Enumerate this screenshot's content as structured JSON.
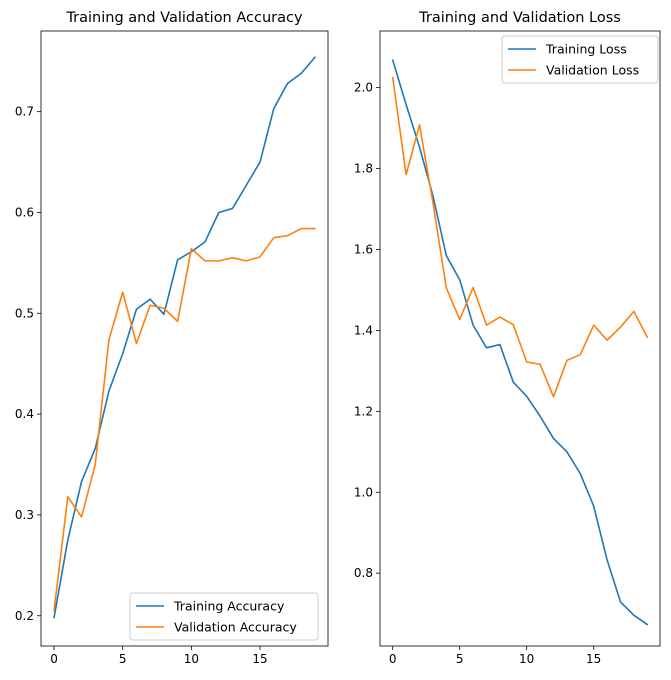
{
  "chart_data": [
    {
      "type": "line",
      "title": "Training and Validation Accuracy",
      "xlabel": "",
      "ylabel": "",
      "xlim": [
        -0.95,
        19.95
      ],
      "ylim": [
        0.17,
        0.78
      ],
      "xticks": [
        0,
        5,
        10,
        15
      ],
      "yticks": [
        0.2,
        0.3,
        0.4,
        0.5,
        0.6,
        0.7
      ],
      "ytick_labels": [
        "0.2",
        "0.3",
        "0.4",
        "0.5",
        "0.6",
        "0.7"
      ],
      "grid": false,
      "legend_position": "bottom-right",
      "x": [
        0,
        1,
        2,
        3,
        4,
        5,
        6,
        7,
        8,
        9,
        10,
        11,
        12,
        13,
        14,
        15,
        16,
        17,
        18,
        19
      ],
      "series": [
        {
          "name": "Training Accuracy",
          "color": "#1f77b4",
          "values": [
            0.198,
            0.275,
            0.333,
            0.366,
            0.423,
            0.46,
            0.504,
            0.514,
            0.499,
            0.553,
            0.561,
            0.571,
            0.6,
            0.604,
            0.627,
            0.65,
            0.703,
            0.728,
            0.738,
            0.754
          ]
        },
        {
          "name": "Validation Accuracy",
          "color": "#ff7f0e",
          "values": [
            0.205,
            0.318,
            0.298,
            0.35,
            0.474,
            0.521,
            0.47,
            0.508,
            0.505,
            0.492,
            0.564,
            0.552,
            0.552,
            0.555,
            0.552,
            0.556,
            0.575,
            0.577,
            0.584,
            0.584
          ]
        }
      ]
    },
    {
      "type": "line",
      "title": "Training and Validation Loss",
      "xlabel": "",
      "ylabel": "",
      "xlim": [
        -0.95,
        19.95
      ],
      "ylim": [
        0.62,
        2.14
      ],
      "xticks": [
        0,
        5,
        10,
        15
      ],
      "yticks": [
        0.8,
        1.0,
        1.2,
        1.4,
        1.6,
        1.8,
        2.0
      ],
      "ytick_labels": [
        "0.8",
        "1.0",
        "1.2",
        "1.4",
        "1.6",
        "1.8",
        "2.0"
      ],
      "grid": false,
      "legend_position": "top-right",
      "x": [
        0,
        1,
        2,
        3,
        4,
        5,
        6,
        7,
        8,
        9,
        10,
        11,
        12,
        13,
        14,
        15,
        16,
        17,
        18,
        19
      ],
      "series": [
        {
          "name": "Training Loss",
          "color": "#1f77b4",
          "values": [
            2.068,
            1.958,
            1.853,
            1.733,
            1.585,
            1.525,
            1.413,
            1.357,
            1.365,
            1.272,
            1.237,
            1.188,
            1.133,
            1.1,
            1.046,
            0.966,
            0.833,
            0.729,
            0.696,
            0.673
          ]
        },
        {
          "name": "Validation Loss",
          "color": "#ff7f0e",
          "values": [
            2.025,
            1.785,
            1.908,
            1.716,
            1.505,
            1.427,
            1.506,
            1.413,
            1.433,
            1.414,
            1.322,
            1.316,
            1.236,
            1.326,
            1.34,
            1.413,
            1.376,
            1.408,
            1.447,
            1.383
          ]
        }
      ]
    }
  ]
}
